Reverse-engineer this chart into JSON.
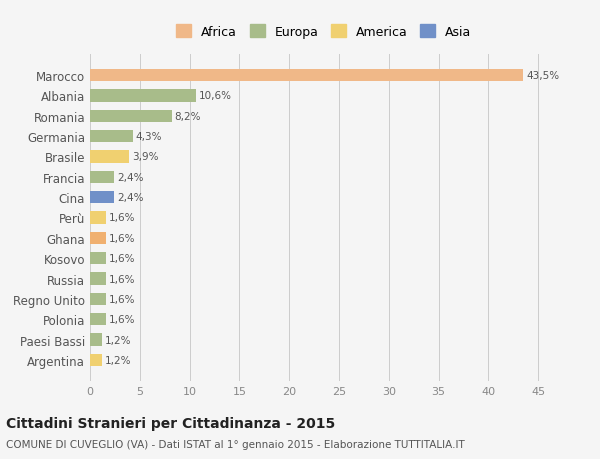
{
  "categories": [
    "Marocco",
    "Albania",
    "Romania",
    "Germania",
    "Brasile",
    "Francia",
    "Cina",
    "Perù",
    "Ghana",
    "Kosovo",
    "Russia",
    "Regno Unito",
    "Polonia",
    "Paesi Bassi",
    "Argentina"
  ],
  "values": [
    43.5,
    10.6,
    8.2,
    4.3,
    3.9,
    2.4,
    2.4,
    1.6,
    1.6,
    1.6,
    1.6,
    1.6,
    1.6,
    1.2,
    1.2
  ],
  "labels": [
    "43,5%",
    "10,6%",
    "8,2%",
    "4,3%",
    "3,9%",
    "2,4%",
    "2,4%",
    "1,6%",
    "1,6%",
    "1,6%",
    "1,6%",
    "1,6%",
    "1,6%",
    "1,2%",
    "1,2%"
  ],
  "colors": [
    "#f0b888",
    "#a8bc8a",
    "#a8bc8a",
    "#a8bc8a",
    "#f0d070",
    "#a8bc8a",
    "#7090c8",
    "#f0d070",
    "#f0b070",
    "#a8bc8a",
    "#a8bc8a",
    "#a8bc8a",
    "#a8bc8a",
    "#a8bc8a",
    "#f0d070"
  ],
  "legend_labels": [
    "Africa",
    "Europa",
    "America",
    "Asia"
  ],
  "legend_colors": [
    "#f0b888",
    "#a8bc8a",
    "#f0d070",
    "#7090c8"
  ],
  "title": "Cittadini Stranieri per Cittadinanza - 2015",
  "subtitle": "COMUNE DI CUVEGLIO (VA) - Dati ISTAT al 1° gennaio 2015 - Elaborazione TUTTITALIA.IT",
  "xlim": [
    0,
    47
  ],
  "xticks": [
    0,
    5,
    10,
    15,
    20,
    25,
    30,
    35,
    40,
    45
  ],
  "background_color": "#f5f5f5",
  "bar_height": 0.6
}
